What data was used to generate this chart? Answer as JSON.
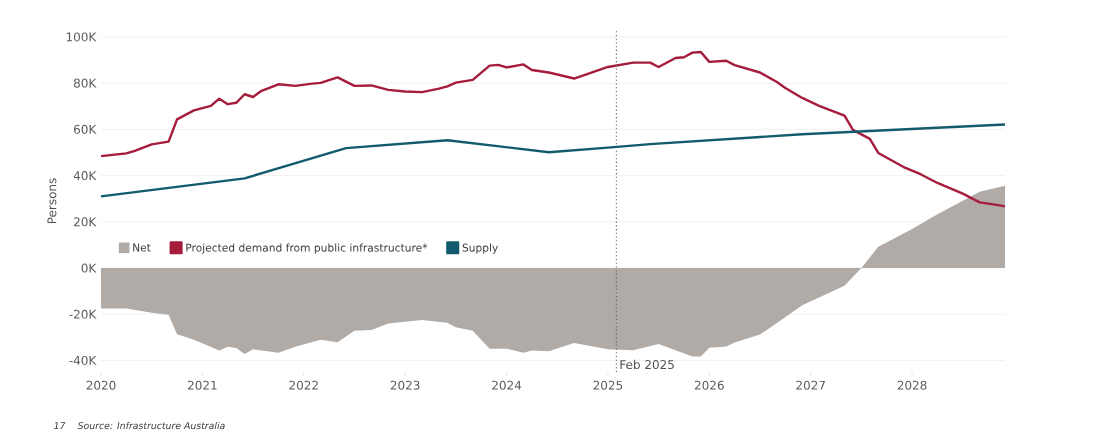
{
  "chart_data": {
    "type": "line",
    "ylabel": "Persons",
    "annotations": [
      "17",
      "Source: Infrastructure Australia"
    ],
    "xlim": [
      "2020-01",
      "2028-12"
    ],
    "xticks": [
      "2020",
      "2021",
      "2022",
      "2023",
      "2024",
      "2025",
      "2026",
      "2027",
      "2028"
    ],
    "ylim": [
      -45000,
      103000
    ],
    "yticks": [
      {
        "value": -40000,
        "label": "-40K"
      },
      {
        "value": -20000,
        "label": "-20K"
      },
      {
        "value": 0,
        "label": "0K"
      },
      {
        "value": 20000,
        "label": "20K"
      },
      {
        "value": 40000,
        "label": "40K"
      },
      {
        "value": 60000,
        "label": "60K"
      },
      {
        "value": 80000,
        "label": "80K"
      },
      {
        "value": 100000,
        "label": "100K"
      }
    ],
    "grid": "y",
    "legend": "left",
    "marker": "none",
    "line_style": "solid",
    "ref_lines": [
      {
        "axis": "x",
        "value": "2025-02",
        "label": "Feb 2025",
        "line_style": "dotted",
        "color": "#555555"
      }
    ],
    "series": [
      {
        "name": "Net",
        "type": "area",
        "color": "#b1aba7",
        "x": [
          "2020-01",
          "2020-04",
          "2020-07",
          "2020-09",
          "2020-10",
          "2020-12",
          "2021-03",
          "2021-04",
          "2021-05",
          "2021-06",
          "2021-07",
          "2021-10",
          "2021-12",
          "2022-03",
          "2022-05",
          "2022-07",
          "2022-09",
          "2022-11",
          "2023-03",
          "2023-06",
          "2023-07",
          "2023-09",
          "2023-11",
          "2024-01",
          "2024-03",
          "2024-04",
          "2024-06",
          "2024-09",
          "2025-01",
          "2025-04",
          "2025-07",
          "2025-11",
          "2025-12",
          "2026-01",
          "2026-03",
          "2026-04",
          "2026-07",
          "2026-09",
          "2026-12",
          "2027-05",
          "2027-07",
          "2027-09",
          "2028-01",
          "2028-04",
          "2028-09",
          "2028-12"
        ],
        "values": [
          -17500,
          -17500,
          -19400,
          -20200,
          -28700,
          -31000,
          -35700,
          -34100,
          -34600,
          -37200,
          -35200,
          -36700,
          -34100,
          -31000,
          -32100,
          -27100,
          -26800,
          -24000,
          -22500,
          -23700,
          -25600,
          -27100,
          -34900,
          -34900,
          -36700,
          -35700,
          -36000,
          -32500,
          -35200,
          -35600,
          -32900,
          -38300,
          -38300,
          -34500,
          -34000,
          -32200,
          -28800,
          -23800,
          -16100,
          -7700,
          0,
          9200,
          16900,
          23300,
          33000,
          35600
        ]
      },
      {
        "name": "Projected demand from public infrastructure*",
        "color": "#a51c3c",
        "x": [
          "2020-01",
          "2020-04",
          "2020-05",
          "2020-07",
          "2020-09",
          "2020-10",
          "2020-12",
          "2021-02",
          "2021-03",
          "2021-04",
          "2021-05",
          "2021-06",
          "2021-07",
          "2021-08",
          "2021-10",
          "2021-12",
          "2022-02",
          "2022-03",
          "2022-05",
          "2022-07",
          "2022-09",
          "2022-11",
          "2023-01",
          "2023-03",
          "2023-05",
          "2023-06",
          "2023-07",
          "2023-09",
          "2023-11",
          "2023-12",
          "2024-01",
          "2024-03",
          "2024-04",
          "2024-06",
          "2024-09",
          "2025-01",
          "2025-04",
          "2025-06",
          "2025-07",
          "2025-09",
          "2025-10",
          "2025-11",
          "2025-12",
          "2026-01",
          "2026-03",
          "2026-04",
          "2026-07",
          "2026-09",
          "2026-10",
          "2026-12",
          "2027-02",
          "2027-05",
          "2027-06",
          "2027-08",
          "2027-09",
          "2027-12",
          "2028-02",
          "2028-04",
          "2028-07",
          "2028-09",
          "2028-11",
          "2028-12"
        ],
        "values": [
          48400,
          49600,
          50700,
          53500,
          54700,
          64300,
          68200,
          70200,
          73300,
          70900,
          71500,
          75200,
          74000,
          76700,
          79500,
          78800,
          79800,
          80100,
          82500,
          78800,
          79000,
          77100,
          76400,
          76100,
          77600,
          78600,
          80200,
          81400,
          87600,
          87900,
          86800,
          88100,
          85700,
          84600,
          82000,
          87000,
          88900,
          88900,
          87000,
          90900,
          91200,
          93200,
          93500,
          89200,
          89700,
          87800,
          84600,
          80500,
          77900,
          73600,
          70200,
          65900,
          59800,
          55900,
          49800,
          43700,
          40600,
          36800,
          32200,
          28400,
          27300,
          26700
        ]
      },
      {
        "name": "Supply",
        "color": "#125b6e",
        "x": [
          "2020-01",
          "2021-06",
          "2022-06",
          "2023-06",
          "2024-06",
          "2025-01",
          "2025-06",
          "2026-12",
          "2028-12"
        ],
        "values": [
          31000,
          38800,
          51900,
          55300,
          50100,
          52100,
          53600,
          57900,
          62100
        ]
      }
    ]
  }
}
